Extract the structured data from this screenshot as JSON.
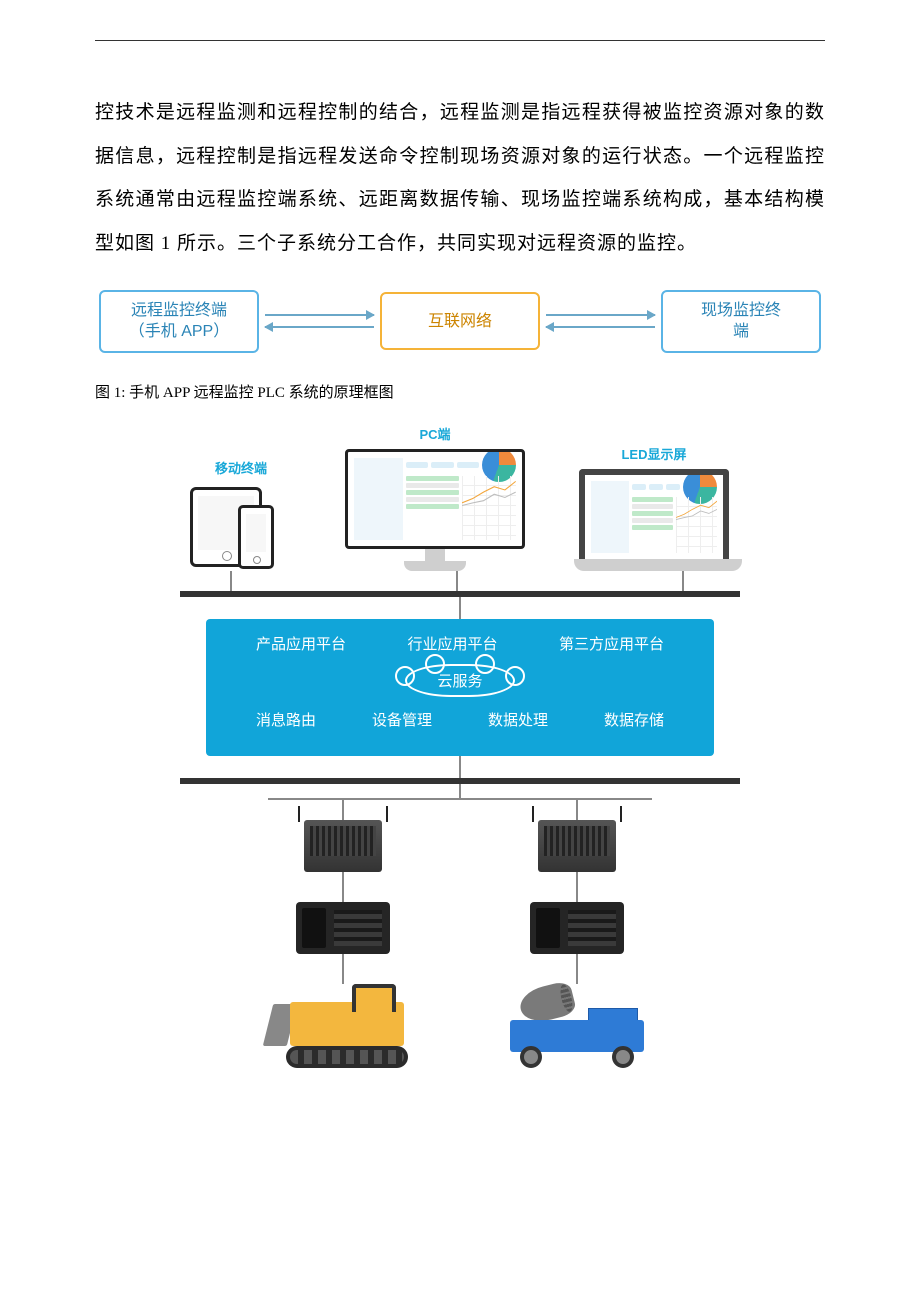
{
  "body_text": "控技术是远程监测和远程控制的结合，远程监测是指远程获得被监控资源对象的数据信息，远程控制是指远程发送命令控制现场资源对象的运行状态。一个远程监控系统通常由远程监控端系统、远距离数据传输、现场监控端系统构成，基本结构模型如图 1 所示。三个子系统分工合作，共同实现对远程资源的监控。",
  "diagram1": {
    "nodes": [
      {
        "id": "remote",
        "line1": "远程监控终端",
        "line2": "（手机 APP）",
        "border_color": "#5ab4e6",
        "text_color": "#2a84b6"
      },
      {
        "id": "internet",
        "line1": "互联网络",
        "line2": "",
        "border_color": "#f5b338",
        "text_color": "#cc8400"
      },
      {
        "id": "field",
        "line1": "现场监控终",
        "line2": "端",
        "border_color": "#5ab4e6",
        "text_color": "#2a84b6"
      }
    ],
    "arrow_color": "#6aa7c8",
    "caption": "图 1:  手机 APP 远程监控 PLC 系统的原理框图"
  },
  "diagram2": {
    "clients": {
      "mobile": {
        "label": "移动终端",
        "color": "#19a8d8"
      },
      "pc": {
        "label": "PC端",
        "color": "#19a8d8"
      },
      "led": {
        "label": "LED显示屏",
        "color": "#19a8d8"
      }
    },
    "dashboard_colors": {
      "pie_segments": [
        "#f08a3c",
        "#3bb6a0",
        "#3a8ed8"
      ],
      "row_grey": "#e9e9e9",
      "row_green": "#bfe9c9",
      "side_panel": "#eef6fb"
    },
    "bus_color": "#333333",
    "connector_color": "#888888",
    "cloud": {
      "bg": "#11a5d9",
      "row1": [
        "产品应用平台",
        "行业应用平台",
        "第三方应用平台"
      ],
      "badge": "云服务",
      "row2": [
        "消息路由",
        "设备管理",
        "数据处理",
        "数据存储"
      ],
      "text_color": "#ffffff"
    },
    "devices": {
      "gateway_color": "#3a3a3a",
      "plc_color": "#252525",
      "bulldozer_body": "#f3b73e",
      "bulldozer_track": "#2b2b2b",
      "fog_base": "#2e7bd6",
      "fog_cannon": "#7a7a7a"
    }
  }
}
